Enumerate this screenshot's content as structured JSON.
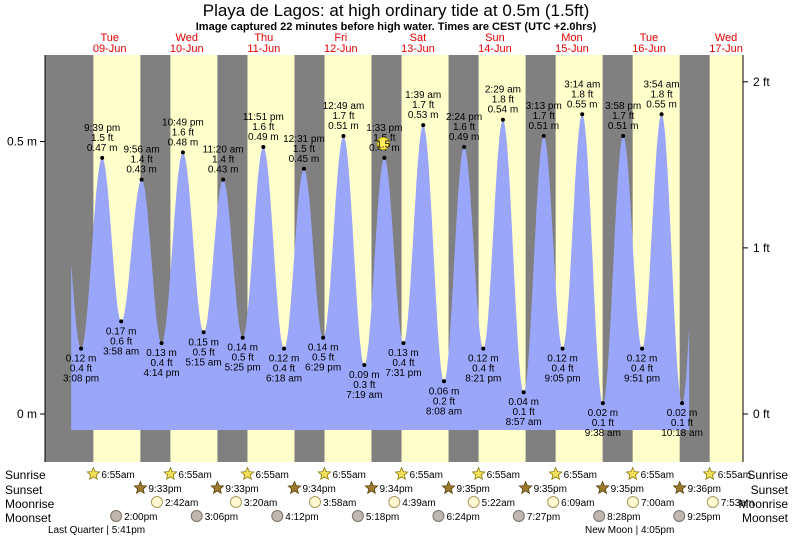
{
  "header": {
    "title": "Playa de Lagos: at high  ordinary tide at 0.5m (1.5ft)",
    "subtitle": "Image captured 22 minutes before high water. Times are CEST (UTC +2.0hrs)"
  },
  "days": [
    {
      "weekday": "Tue",
      "date": "09-Jun"
    },
    {
      "weekday": "Wed",
      "date": "10-Jun"
    },
    {
      "weekday": "Thu",
      "date": "11-Jun"
    },
    {
      "weekday": "Fri",
      "date": "12-Jun"
    },
    {
      "weekday": "Sat",
      "date": "13-Jun"
    },
    {
      "weekday": "Sun",
      "date": "14-Jun"
    },
    {
      "weekday": "Mon",
      "date": "15-Jun"
    },
    {
      "weekday": "Tue",
      "date": "16-Jun"
    },
    {
      "weekday": "Wed",
      "date": "17-Jun"
    }
  ],
  "chart_data": {
    "type": "area",
    "y_left_ticks": [
      {
        "v": 0.5,
        "label": "0.5 m"
      },
      {
        "v": 0,
        "label": "0 m"
      }
    ],
    "y_right_ticks": [
      {
        "v": 2,
        "label": "2 ft"
      },
      {
        "v": 1,
        "label": "1 ft"
      },
      {
        "v": 0,
        "label": "0 ft"
      }
    ],
    "x_range_days": [
      -0.34,
      8.72
    ],
    "day_start_x": [
      0,
      1,
      2,
      3,
      4,
      5,
      6,
      7,
      8
    ],
    "sunrise_fraction": 0.288,
    "sunset_fraction": 0.898,
    "colors": {
      "tide": "#9aa6fa",
      "day": "#ffffcc",
      "night": "#808080",
      "gap": "#ffffff"
    },
    "tides": [
      {
        "t": 0.128,
        "m": 0.12,
        "ft": "0.4 ft",
        "time": "3:08 pm",
        "type": "low"
      },
      {
        "t": 0.402,
        "m": 0.47,
        "ft": "1.5 ft",
        "time": "9:39 pm",
        "type": "high"
      },
      {
        "t": 0.649,
        "m": 0.17,
        "ft": "0.6 ft",
        "time": "3:58 am",
        "type": "low"
      },
      {
        "t": 0.914,
        "m": 0.43,
        "ft": "1.4 ft",
        "time": "9:56 am",
        "type": "high"
      },
      {
        "t": 1.173,
        "m": 0.13,
        "ft": "0.4 ft",
        "time": "4:14 pm",
        "type": "low"
      },
      {
        "t": 1.45,
        "m": 0.48,
        "ft": "1.6 ft",
        "time": "10:49 pm",
        "type": "high"
      },
      {
        "t": 1.719,
        "m": 0.15,
        "ft": "0.5 ft",
        "time": "5:15 am",
        "type": "low"
      },
      {
        "t": 1.972,
        "m": 0.43,
        "ft": "1.4 ft",
        "time": "11:20 am",
        "type": "high"
      },
      {
        "t": 2.226,
        "m": 0.14,
        "ft": "0.5 ft",
        "time": "5:25 pm",
        "type": "low"
      },
      {
        "t": 2.494,
        "m": 0.49,
        "ft": "1.6 ft",
        "time": "11:51 pm",
        "type": "high"
      },
      {
        "t": 2.763,
        "m": 0.12,
        "ft": "0.4 ft",
        "time": "6:18 am",
        "type": "low"
      },
      {
        "t": 3.021,
        "m": 0.45,
        "ft": "1.5 ft",
        "time": "12:31 pm",
        "type": "high"
      },
      {
        "t": 3.27,
        "m": 0.14,
        "ft": "0.5 ft",
        "time": "6:29 pm",
        "type": "low"
      },
      {
        "t": 3.534,
        "m": 0.51,
        "ft": "1.7 ft",
        "time": "12:49 am",
        "type": "high"
      },
      {
        "t": 3.805,
        "m": 0.09,
        "ft": "0.3 ft",
        "time": "7:19 am",
        "type": "low"
      },
      {
        "t": 4.065,
        "m": 0.47,
        "ft": "1.5 ft",
        "time": "1:33 pm",
        "type": "high"
      },
      {
        "t": 4.313,
        "m": 0.13,
        "ft": "0.4 ft",
        "time": "7:31 pm",
        "type": "low"
      },
      {
        "t": 4.569,
        "m": 0.53,
        "ft": "1.7 ft",
        "time": "1:39 am",
        "type": "high"
      },
      {
        "t": 4.839,
        "m": 0.06,
        "ft": "0.2 ft",
        "time": "8:08 am",
        "type": "low"
      },
      {
        "t": 5.1,
        "m": 0.49,
        "ft": "1.6 ft",
        "time": "2:24 pm",
        "type": "high"
      },
      {
        "t": 5.349,
        "m": 0.12,
        "ft": "0.4 ft",
        "time": "8:21 pm",
        "type": "low"
      },
      {
        "t": 5.604,
        "m": 0.54,
        "ft": "1.8 ft",
        "time": "2:29 am",
        "type": "high"
      },
      {
        "t": 5.873,
        "m": 0.04,
        "ft": "0.1 ft",
        "time": "8:57 am",
        "type": "low"
      },
      {
        "t": 6.134,
        "m": 0.51,
        "ft": "1.7 ft",
        "time": "3:13 pm",
        "type": "high"
      },
      {
        "t": 6.378,
        "m": 0.12,
        "ft": "0.4 ft",
        "time": "9:05 pm",
        "type": "low"
      },
      {
        "t": 6.633,
        "m": 0.55,
        "ft": "1.8 ft",
        "time": "3:14 am",
        "type": "high"
      },
      {
        "t": 6.901,
        "m": 0.02,
        "ft": "0.1 ft",
        "time": "9:38 am",
        "type": "low"
      },
      {
        "t": 7.165,
        "m": 0.51,
        "ft": "1.7 ft",
        "time": "3:58 pm",
        "type": "high"
      },
      {
        "t": 7.41,
        "m": 0.12,
        "ft": "0.4 ft",
        "time": "9:51 pm",
        "type": "low"
      },
      {
        "t": 7.663,
        "m": 0.55,
        "ft": "1.8 ft",
        "time": "3:54 am",
        "type": "high"
      },
      {
        "t": 7.929,
        "m": 0.02,
        "ft": "0.1 ft",
        "time": "10:18 am",
        "type": "low"
      }
    ],
    "current": {
      "t": 4.05,
      "m": 0.5,
      "label": "1.5"
    }
  },
  "rows": {
    "sunrise_label": "Sunrise",
    "sunset_label": "Sunset",
    "moonrise_label": "Moonrise",
    "moonset_label": "Moonset",
    "sunrise": [
      {
        "day": 0,
        "time": "6:55am"
      },
      {
        "day": 1,
        "time": "6:55am"
      },
      {
        "day": 2,
        "time": "6:55am"
      },
      {
        "day": 3,
        "time": "6:55am"
      },
      {
        "day": 4,
        "time": "6:55am"
      },
      {
        "day": 5,
        "time": "6:55am"
      },
      {
        "day": 6,
        "time": "6:55am"
      },
      {
        "day": 7,
        "time": "6:55am"
      },
      {
        "day": 8,
        "time": "6:55am"
      }
    ],
    "sunset": [
      {
        "day": 0,
        "time": "9:33pm"
      },
      {
        "day": 1,
        "time": "9:33pm"
      },
      {
        "day": 2,
        "time": "9:34pm"
      },
      {
        "day": 3,
        "time": "9:34pm"
      },
      {
        "day": 4,
        "time": "9:35pm"
      },
      {
        "day": 5,
        "time": "9:35pm"
      },
      {
        "day": 6,
        "time": "9:35pm"
      },
      {
        "day": 7,
        "time": "9:36pm"
      }
    ],
    "moonrise": [
      {
        "day": 0,
        "time": "2:42am"
      },
      {
        "day": 1,
        "time": "3:20am"
      },
      {
        "day": 2,
        "time": "3:58am"
      },
      {
        "day": 3,
        "time": "4:39am"
      },
      {
        "day": 4,
        "time": "5:22am"
      },
      {
        "day": 5,
        "time": "6:09am"
      },
      {
        "day": 6,
        "time": "7:00am"
      },
      {
        "day": 7,
        "time": "7:53am"
      }
    ],
    "moonset": [
      {
        "day": 0,
        "time": "2:00pm"
      },
      {
        "day": 1,
        "time": "3:06pm"
      },
      {
        "day": 2,
        "time": "4:12pm"
      },
      {
        "day": 3,
        "time": "5:18pm"
      },
      {
        "day": 4,
        "time": "6:24pm"
      },
      {
        "day": 5,
        "time": "7:27pm"
      },
      {
        "day": 6,
        "time": "8:28pm"
      },
      {
        "day": 7,
        "time": "9:25pm"
      }
    ],
    "moon_phases": [
      {
        "text": "Last Quarter | 5:41pm",
        "day": 0
      },
      {
        "text": "New Moon | 4:05pm",
        "day": 7
      }
    ]
  }
}
